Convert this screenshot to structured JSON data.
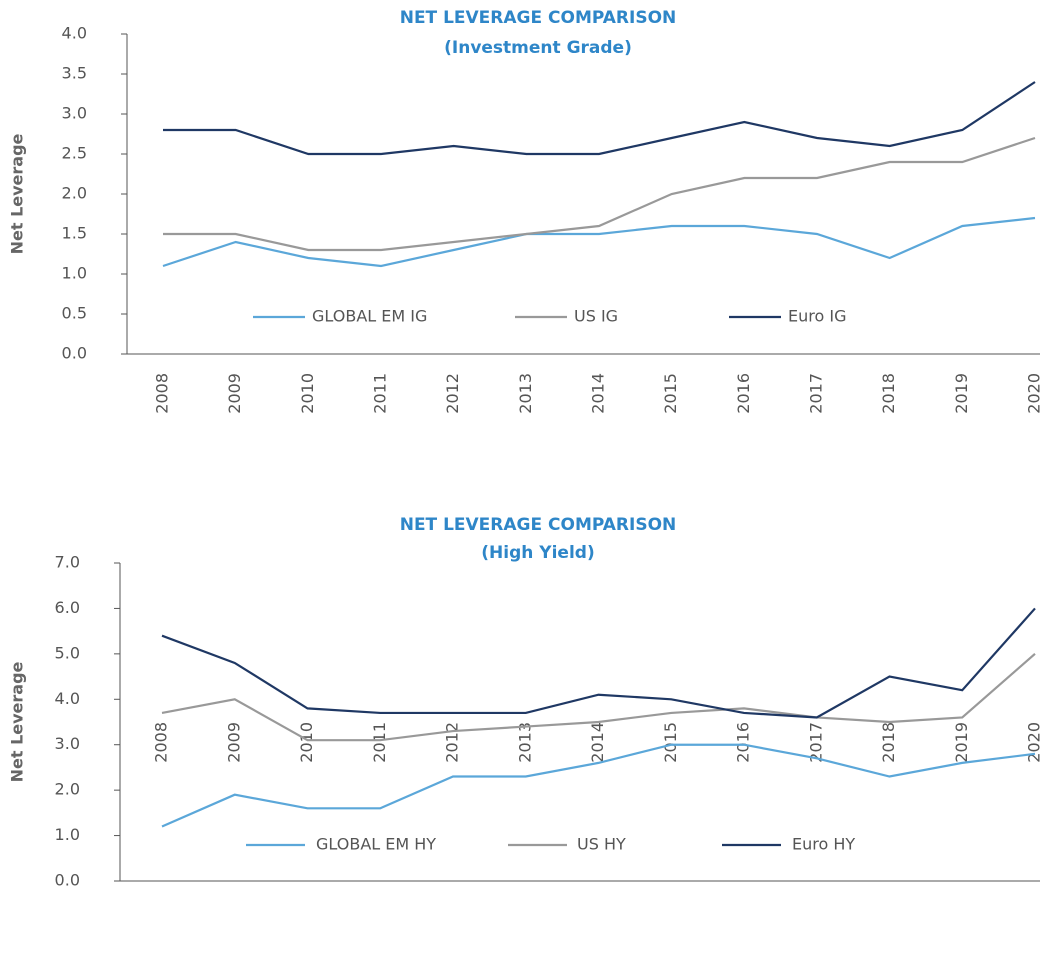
{
  "chart_data": [
    {
      "type": "line",
      "title": "NET LEVERAGE COMPARISON",
      "subtitle": "(Investment Grade)",
      "y_label": "Net Leverage",
      "categories": [
        "2008",
        "2009",
        "2010",
        "2011",
        "2012",
        "2013",
        "2014",
        "2015",
        "2016",
        "2017",
        "2018",
        "2019",
        "2020"
      ],
      "series": [
        {
          "name": "GLOBAL EM IG",
          "color": "#5ba7d9",
          "values": [
            1.1,
            1.4,
            1.2,
            1.1,
            1.3,
            1.5,
            1.5,
            1.6,
            1.6,
            1.5,
            1.2,
            1.6,
            1.7
          ]
        },
        {
          "name": "US IG",
          "color": "#999999",
          "values": [
            1.5,
            1.5,
            1.3,
            1.3,
            1.4,
            1.5,
            1.6,
            2.0,
            2.2,
            2.2,
            2.4,
            2.4,
            2.7
          ]
        },
        {
          "name": "Euro IG",
          "color": "#1f3864",
          "values": [
            2.8,
            2.8,
            2.5,
            2.5,
            2.6,
            2.5,
            2.5,
            2.7,
            2.9,
            2.7,
            2.6,
            2.8,
            3.4
          ]
        }
      ],
      "ylim": [
        0,
        4
      ],
      "yticks": [
        {
          "value": 0,
          "label": "0.0"
        },
        0.5,
        {
          "value": 1,
          "label": "1.0"
        },
        1.5,
        {
          "value": 2,
          "label": "2.0"
        },
        2.5,
        {
          "value": 3,
          "label": "3.0"
        },
        3.5,
        {
          "value": 4,
          "label": "4.0"
        }
      ],
      "grid": false
    },
    {
      "type": "line",
      "title": "NET LEVERAGE COMPARISON",
      "subtitle": "(High Yield)",
      "y_label": "Net Leverage",
      "categories": [
        "2008",
        "2009",
        "2010",
        "2011",
        "2012",
        "2013",
        "2014",
        "2015",
        "2016",
        "2017",
        "2018",
        "2019",
        "2020"
      ],
      "series": [
        {
          "name": "GLOBAL EM HY",
          "color": "#5ba7d9",
          "values": [
            1.2,
            1.9,
            1.6,
            1.6,
            2.3,
            2.3,
            2.6,
            3.0,
            3.0,
            2.7,
            2.3,
            2.6,
            2.8
          ]
        },
        {
          "name": "US HY",
          "color": "#999999",
          "values": [
            3.7,
            4.0,
            3.1,
            3.1,
            3.3,
            3.4,
            3.5,
            3.7,
            3.8,
            3.6,
            3.5,
            3.6,
            5.0
          ]
        },
        {
          "name": "Euro HY",
          "color": "#1f3864",
          "values": [
            5.4,
            4.8,
            3.8,
            3.7,
            3.7,
            3.7,
            4.1,
            4.0,
            3.7,
            3.6,
            4.5,
            4.2,
            6.0
          ]
        }
      ],
      "ylim": [
        0,
        7
      ],
      "yticks": [
        {
          "value": 0,
          "label": "0.0"
        },
        {
          "value": 1,
          "label": "1.0"
        },
        {
          "value": 2,
          "label": "2.0"
        },
        {
          "value": 3,
          "label": "3.0"
        },
        {
          "value": 4,
          "label": "4.0"
        },
        {
          "value": 5,
          "label": "5.0"
        },
        {
          "value": 6,
          "label": "6.0"
        },
        {
          "value": 7,
          "label": "7.0"
        }
      ],
      "grid": false
    }
  ]
}
